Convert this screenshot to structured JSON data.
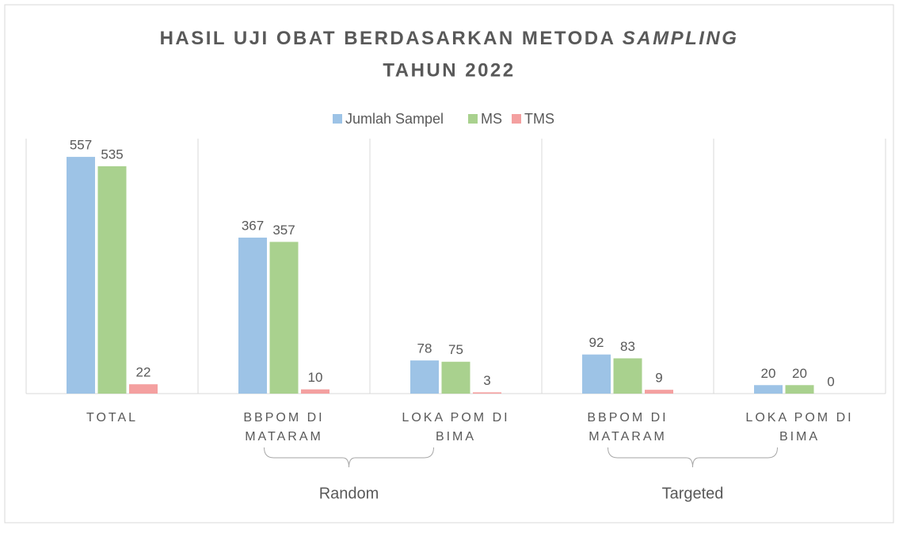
{
  "chart_data": {
    "type": "bar",
    "title": {
      "text": "HASIL UJI OBAT BERDASARKAN METODA",
      "italic": "SAMPLING",
      "line2": "TAHUN 2022"
    },
    "categories": [
      [
        "TOTAL"
      ],
      [
        "BBPOM DI",
        "MATARAM"
      ],
      [
        "LOKA POM DI",
        "BIMA"
      ],
      [
        "BBPOM DI",
        "MATARAM"
      ],
      [
        "LOKA POM DI",
        "BIMA"
      ]
    ],
    "groups": [
      {
        "label": "Random",
        "span": [
          1,
          2
        ]
      },
      {
        "label": "Targeted",
        "span": [
          3,
          4
        ]
      }
    ],
    "series": [
      {
        "name": "Jumlah Sampel",
        "color": "#9dc3e6",
        "values": [
          557,
          367,
          78,
          92,
          20
        ]
      },
      {
        "name": "MS",
        "color": "#a9d18e",
        "values": [
          535,
          357,
          75,
          83,
          20
        ]
      },
      {
        "name": "TMS",
        "color": "#f4a0a0",
        "values": [
          22,
          10,
          3,
          9,
          0
        ]
      }
    ],
    "ylim": [
      0,
      600
    ],
    "legend": "top"
  }
}
